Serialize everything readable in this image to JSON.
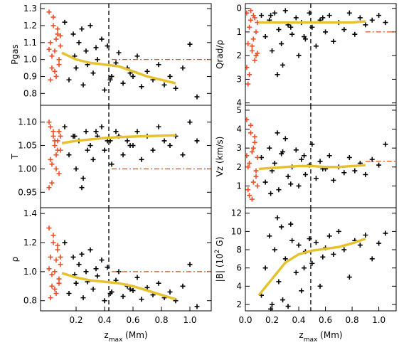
{
  "chart_data": [
    {
      "type": "scatter",
      "ylabel": [
        "Pgas"
      ],
      "ylim": [
        0.73,
        1.33
      ],
      "yticks": [
        0.8,
        0.9,
        {
          "value": 1.0,
          "label": "1.0"
        },
        1.1,
        1.2,
        1.3
      ],
      "xlim": [
        -0.05,
        1.15
      ],
      "vline": {
        "x": 0.43,
        "color": "#000000"
      },
      "hline": {
        "y": 1.0,
        "x0": 0.45,
        "color": "#e0501e"
      },
      "series": [
        {
          "mark": "plus",
          "color": "#000000",
          "x": [
            0.12,
            0.15,
            0.18,
            0.2,
            0.22,
            0.25,
            0.27,
            0.3,
            0.32,
            0.35,
            0.38,
            0.4,
            0.42,
            0.45,
            0.48,
            0.5,
            0.53,
            0.56,
            0.6,
            0.63,
            0.66,
            0.7,
            0.74,
            0.78,
            0.82,
            0.86,
            0.9,
            0.95,
            1.0,
            1.05,
            0.28,
            0.34,
            0.44,
            0.58,
            0.24,
            0.19
          ],
          "values": [
            1.22,
            0.88,
            1.15,
            0.95,
            1.1,
            0.85,
            1.05,
            1.2,
            0.92,
            1.0,
            1.12,
            0.82,
            1.08,
            0.9,
            0.98,
            1.04,
            0.86,
            0.95,
            0.9,
            1.02,
            0.84,
            0.93,
            0.88,
            0.97,
            0.85,
            0.9,
            0.83,
            0.95,
            1.09,
            0.78,
            0.97,
            1.07,
            0.88,
            0.92,
            1.18,
            1.02
          ]
        },
        {
          "mark": "plus",
          "color": "#e8502a",
          "x": [
            0.01,
            0.02,
            0.03,
            0.04,
            0.05,
            0.06,
            0.07,
            0.08,
            0.09,
            0.02,
            0.04,
            0.06,
            0.08,
            0.03,
            0.05,
            0.07,
            0.01,
            0.09
          ],
          "values": [
            1.28,
            1.1,
            0.95,
            1.2,
            1.05,
            0.9,
            1.15,
            1.0,
            1.08,
            0.88,
            1.25,
            1.12,
            0.97,
            1.02,
            0.93,
            1.18,
            1.06,
            1.14
          ]
        },
        {
          "mark": "line",
          "color": "#e6c230",
          "x": [
            0.1,
            0.2,
            0.3,
            0.4,
            0.5,
            0.6,
            0.7,
            0.8,
            0.9
          ],
          "values": [
            1.04,
            1.0,
            0.98,
            0.97,
            0.96,
            0.93,
            0.9,
            0.88,
            0.86
          ]
        }
      ]
    },
    {
      "type": "scatter",
      "ylabel": [
        "T"
      ],
      "ylim": [
        0.917,
        1.136
      ],
      "yticks": [
        0.95,
        {
          "value": 1.0,
          "label": "1.00"
        },
        1.05,
        {
          "value": 1.1,
          "label": "1.10"
        }
      ],
      "xlim": [
        -0.05,
        1.15
      ],
      "vline": {
        "x": 0.43,
        "color": "#000000"
      },
      "hline": {
        "y": 1.0,
        "x0": 0.45,
        "color": "#e0501e"
      },
      "series": [
        {
          "mark": "plus",
          "color": "#000000",
          "x": [
            0.12,
            0.15,
            0.18,
            0.2,
            0.22,
            0.25,
            0.27,
            0.3,
            0.32,
            0.35,
            0.38,
            0.4,
            0.42,
            0.45,
            0.48,
            0.5,
            0.53,
            0.56,
            0.6,
            0.63,
            0.66,
            0.7,
            0.74,
            0.78,
            0.82,
            0.86,
            0.9,
            0.95,
            1.0,
            1.05,
            0.28,
            0.34,
            0.44,
            0.58,
            0.24,
            0.19
          ],
          "values": [
            1.09,
            1.03,
            1.07,
            1.0,
            1.06,
            0.98,
            1.08,
            1.05,
            1.02,
            1.07,
            1.09,
            1.04,
            1.06,
            1.01,
            1.08,
            1.07,
            1.03,
            1.06,
            1.05,
            1.08,
            1.02,
            1.07,
            1.04,
            1.09,
            1.06,
            1.05,
            1.07,
            1.03,
            1.1,
            1.06,
            1.04,
            1.08,
            1.06,
            1.05,
            0.96,
            1.07
          ]
        },
        {
          "mark": "plus",
          "color": "#e8502a",
          "x": [
            0.01,
            0.02,
            0.03,
            0.04,
            0.05,
            0.06,
            0.07,
            0.08,
            0.09,
            0.02,
            0.04,
            0.06,
            0.08,
            0.03,
            0.05,
            0.07,
            0.01,
            0.09
          ],
          "values": [
            1.1,
            1.02,
            0.97,
            1.08,
            1.05,
            1.0,
            1.06,
            0.99,
            1.04,
            1.09,
            1.07,
            1.03,
            1.08,
            1.01,
            1.06,
            1.04,
            0.96,
            1.07
          ]
        },
        {
          "mark": "line",
          "color": "#e6c230",
          "x": [
            0.1,
            0.2,
            0.3,
            0.4,
            0.5,
            0.6,
            0.7,
            0.8,
            0.9
          ],
          "values": [
            1.055,
            1.06,
            1.063,
            1.066,
            1.068,
            1.069,
            1.07,
            1.071,
            1.072
          ]
        }
      ]
    },
    {
      "type": "scatter",
      "ylabel": [
        "ρ"
      ],
      "ylim": [
        0.73,
        1.44
      ],
      "yticks": [
        0.8,
        {
          "value": 1.0,
          "label": "1.0"
        },
        1.2,
        1.4
      ],
      "xlim": [
        -0.05,
        1.15
      ],
      "xticks": [
        0.2,
        0.4,
        0.6,
        0.8,
        {
          "value": 1.0,
          "label": "1.0"
        }
      ],
      "xlabel": [
        "z",
        "max",
        " (Mm)"
      ],
      "vline": {
        "x": 0.43,
        "color": "#000000"
      },
      "hline": {
        "y": 1.0,
        "x0": 0.45,
        "color": "#e0501e"
      },
      "series": [
        {
          "mark": "plus",
          "color": "#000000",
          "x": [
            0.12,
            0.15,
            0.18,
            0.2,
            0.22,
            0.25,
            0.27,
            0.3,
            0.32,
            0.35,
            0.38,
            0.4,
            0.42,
            0.45,
            0.48,
            0.5,
            0.53,
            0.56,
            0.6,
            0.63,
            0.66,
            0.7,
            0.74,
            0.78,
            0.82,
            0.86,
            0.9,
            0.95,
            1.0,
            1.05,
            0.28,
            0.34,
            0.44,
            0.58,
            0.24,
            0.19
          ],
          "values": [
            1.2,
            0.85,
            1.1,
            0.92,
            1.05,
            0.82,
            1.0,
            1.15,
            0.88,
            0.97,
            1.08,
            0.8,
            1.03,
            0.86,
            0.94,
            1.0,
            0.83,
            0.9,
            0.87,
            0.96,
            0.81,
            0.89,
            0.84,
            0.92,
            0.82,
            0.86,
            0.8,
            0.9,
            1.05,
            0.76,
            0.93,
            1.02,
            0.85,
            0.88,
            1.12,
            0.98
          ]
        },
        {
          "mark": "plus",
          "color": "#e8502a",
          "x": [
            0.01,
            0.02,
            0.03,
            0.04,
            0.05,
            0.06,
            0.07,
            0.08,
            0.09,
            0.02,
            0.04,
            0.06,
            0.08,
            0.03,
            0.05,
            0.07,
            0.01,
            0.09
          ],
          "values": [
            1.3,
            1.1,
            0.9,
            1.2,
            1.0,
            0.85,
            1.15,
            0.95,
            1.05,
            0.82,
            1.25,
            1.08,
            0.92,
            0.98,
            0.88,
            1.18,
            1.02,
            1.1
          ]
        },
        {
          "mark": "line",
          "color": "#e6c230",
          "x": [
            0.1,
            0.2,
            0.3,
            0.4,
            0.5,
            0.6,
            0.7,
            0.8,
            0.9
          ],
          "values": [
            0.99,
            0.96,
            0.94,
            0.93,
            0.92,
            0.9,
            0.87,
            0.84,
            0.81
          ]
        }
      ]
    },
    {
      "type": "scatter",
      "ylabel": [
        "Qrad/ρ"
      ],
      "ylim": [
        4.1,
        -0.2
      ],
      "yticks": [
        0,
        1,
        2,
        3,
        4
      ],
      "xlim": [
        0,
        1.13
      ],
      "vline": {
        "x": 0.49,
        "color": "#000000"
      },
      "hline": {
        "y": 1.0,
        "x0": 0.9,
        "color": "#e0501e"
      },
      "series": [
        {
          "mark": "plus",
          "color": "#000000",
          "x": [
            0.12,
            0.15,
            0.18,
            0.2,
            0.22,
            0.25,
            0.27,
            0.3,
            0.32,
            0.35,
            0.38,
            0.4,
            0.42,
            0.45,
            0.48,
            0.5,
            0.53,
            0.56,
            0.6,
            0.63,
            0.66,
            0.7,
            0.74,
            0.78,
            0.82,
            0.86,
            0.9,
            0.95,
            1.0,
            1.05,
            0.28,
            0.34,
            0.44,
            0.58,
            0.24,
            0.19
          ],
          "values": [
            0.3,
            1.2,
            0.5,
            1.8,
            0.2,
            0.9,
            1.5,
            0.1,
            0.7,
            1.1,
            0.4,
            2.0,
            0.6,
            1.3,
            0.2,
            0.8,
            1.6,
            0.5,
            1.0,
            0.3,
            1.4,
            0.6,
            0.9,
            0.2,
            1.1,
            0.4,
            0.7,
            0.5,
            0.3,
            0.6,
            2.4,
            0.8,
            1.2,
            0.4,
            2.8,
            0.3
          ]
        },
        {
          "mark": "plus",
          "color": "#e8502a",
          "x": [
            0.01,
            0.02,
            0.03,
            0.04,
            0.05,
            0.06,
            0.07,
            0.08,
            0.09,
            0.02,
            0.04,
            0.06,
            0.08,
            0.03,
            0.05,
            0.07,
            0.01,
            0.09
          ],
          "values": [
            0.2,
            1.5,
            2.8,
            0.5,
            1.8,
            0.3,
            2.2,
            1.0,
            0.6,
            3.2,
            0.1,
            1.3,
            2.0,
            0.8,
            1.6,
            0.4,
            2.5,
            1.9
          ]
        },
        {
          "mark": "line",
          "color": "#e6c230",
          "x": [
            0.1,
            0.2,
            0.3,
            0.4,
            0.5,
            0.6,
            0.7,
            0.8,
            0.9
          ],
          "values": [
            0.6,
            0.6,
            0.6,
            0.6,
            0.6,
            0.6,
            0.6,
            0.6,
            0.55
          ]
        }
      ]
    },
    {
      "type": "scatter",
      "ylabel": [
        "Vz (km/s)"
      ],
      "ylim": [
        -0.15,
        5.26
      ],
      "yticks": [
        1,
        2,
        3,
        4,
        5
      ],
      "xlim": [
        0,
        1.13
      ],
      "vline": {
        "x": 0.49,
        "color": "#000000"
      },
      "hline": {
        "y": 2.3,
        "x0": 0.9,
        "color": "#e0501e"
      },
      "series": [
        {
          "mark": "plus",
          "color": "#000000",
          "x": [
            0.12,
            0.15,
            0.18,
            0.2,
            0.22,
            0.25,
            0.27,
            0.3,
            0.32,
            0.35,
            0.38,
            0.4,
            0.42,
            0.45,
            0.48,
            0.5,
            0.53,
            0.56,
            0.6,
            0.63,
            0.66,
            0.7,
            0.74,
            0.78,
            0.82,
            0.86,
            0.9,
            0.95,
            1.0,
            1.05,
            0.28,
            0.34,
            0.44,
            0.58,
            0.24,
            0.19
          ],
          "values": [
            2.5,
            1.2,
            3.0,
            1.8,
            2.2,
            0.8,
            2.7,
            3.5,
            1.5,
            2.0,
            2.9,
            1.0,
            2.4,
            1.6,
            2.1,
            3.2,
            1.4,
            2.3,
            1.9,
            2.6,
            1.3,
            2.0,
            1.7,
            2.5,
            1.8,
            2.2,
            1.6,
            2.4,
            2.1,
            3.2,
            2.8,
            1.1,
            2.6,
            1.9,
            3.8,
            0.6
          ]
        },
        {
          "mark": "plus",
          "color": "#e8502a",
          "x": [
            0.01,
            0.02,
            0.03,
            0.04,
            0.05,
            0.06,
            0.07,
            0.08,
            0.09,
            0.02,
            0.04,
            0.06,
            0.08,
            0.03,
            0.05,
            0.07,
            0.01,
            0.09
          ],
          "values": [
            4.5,
            2.0,
            0.5,
            3.8,
            2.8,
            1.2,
            3.3,
            1.8,
            2.5,
            0.8,
            4.2,
            3.0,
            1.5,
            2.2,
            0.3,
            3.6,
            2.6,
            1.0
          ]
        },
        {
          "mark": "line",
          "color": "#e6c230",
          "x": [
            0.1,
            0.2,
            0.3,
            0.4,
            0.5,
            0.6,
            0.7,
            0.8,
            0.9
          ],
          "values": [
            1.9,
            1.95,
            2.0,
            2.05,
            2.05,
            2.0,
            2.0,
            2.05,
            2.1
          ]
        }
      ]
    },
    {
      "type": "scatter",
      "ylabel": [
        "|B| (10",
        "2",
        " G)"
      ],
      "ylim": [
        1.3,
        12.6
      ],
      "yticks": [
        2,
        4,
        6,
        8,
        10,
        12
      ],
      "xlim": [
        0,
        1.13
      ],
      "xticks": [
        {
          "value": 0,
          "label": "0.0"
        },
        0.2,
        0.4,
        0.6,
        0.8,
        {
          "value": 1.0,
          "label": "1.0"
        }
      ],
      "xlabel": [
        "z",
        "max",
        " (Mm)"
      ],
      "vline": {
        "x": 0.49,
        "color": "#000000"
      },
      "series": [
        {
          "mark": "plus",
          "color": "#000000",
          "x": [
            0.12,
            0.15,
            0.18,
            0.2,
            0.22,
            0.25,
            0.27,
            0.3,
            0.32,
            0.35,
            0.38,
            0.4,
            0.42,
            0.45,
            0.48,
            0.5,
            0.53,
            0.56,
            0.6,
            0.63,
            0.66,
            0.7,
            0.74,
            0.78,
            0.82,
            0.86,
            0.9,
            0.95,
            1.0,
            1.05,
            0.28,
            0.34,
            0.44,
            0.58,
            0.24,
            0.19
          ],
          "values": [
            3.0,
            6.0,
            9.5,
            2.0,
            8.0,
            4.5,
            10.5,
            7.0,
            1.8,
            9.0,
            5.5,
            8.5,
            3.5,
            7.8,
            9.2,
            6.5,
            8.8,
            4.0,
            8.2,
            9.5,
            7.5,
            10.0,
            8.0,
            5.0,
            9.0,
            8.5,
            9.6,
            7.0,
            8.7,
            9.8,
            2.5,
            10.8,
            6.0,
            7.2,
            11.5,
            1.5
          ]
        },
        {
          "mark": "line",
          "color": "#e6c230",
          "x": [
            0.1,
            0.2,
            0.3,
            0.4,
            0.5,
            0.6,
            0.7,
            0.8,
            0.9
          ],
          "values": [
            3.0,
            4.8,
            6.6,
            7.5,
            7.9,
            8.1,
            8.3,
            8.7,
            9.2
          ]
        }
      ]
    }
  ]
}
